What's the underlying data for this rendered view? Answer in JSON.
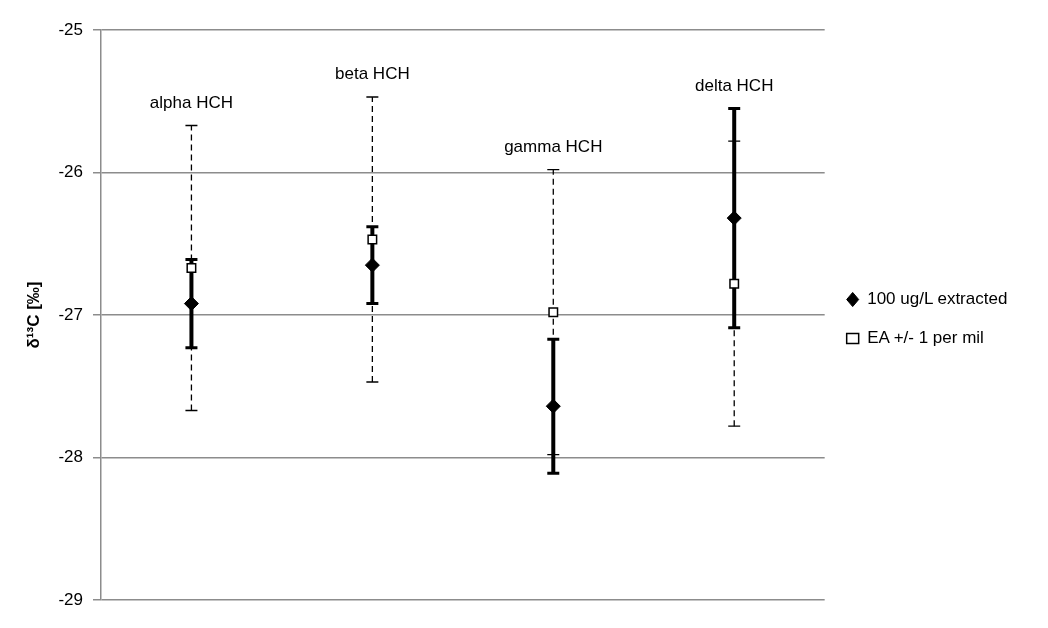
{
  "chart_data": {
    "type": "scatter",
    "ylabel": "δ¹³C [‰]",
    "categories": [
      "alpha HCH",
      "beta HCH",
      "gamma HCH",
      "delta HCH"
    ],
    "series": [
      {
        "name": "100 ug/L extracted",
        "color": "#000000",
        "marker": "diamond",
        "line_style": "solid",
        "values": [
          -26.92,
          -26.65,
          -27.64,
          -26.32
        ],
        "errors": [
          0.31,
          0.27,
          0.47,
          0.77
        ]
      },
      {
        "name": "EA +/- 1 per mil",
        "color": "#000000",
        "marker": "square",
        "line_style": "dashed",
        "values": [
          -26.67,
          -26.47,
          -26.98,
          -26.78
        ],
        "errors": [
          1,
          1,
          1,
          1
        ]
      }
    ],
    "ylim": [
      -29,
      -25
    ],
    "yticks": [
      -29,
      -28,
      -27,
      -26,
      -25
    ],
    "grid": "y",
    "legend": "right"
  }
}
